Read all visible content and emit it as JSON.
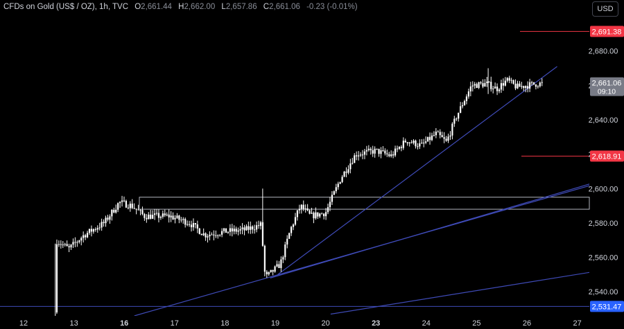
{
  "header": {
    "symbol": "CFDs on Gold (US$ / OZ), 1h, TVC",
    "open_label": "O",
    "open": "2,661.44",
    "high_label": "H",
    "high": "2,662.00",
    "low_label": "L",
    "low": "2,657.86",
    "close_label": "C",
    "close": "2,661.06",
    "change": "-0.23 (-0.01%)"
  },
  "currency_button": "USD",
  "colors": {
    "background": "#000000",
    "candle": "#ffffff",
    "trendline": "#3f4bb8",
    "marker_red": "#f23645",
    "axis_text": "#d1d4dc",
    "current_price_tag": "#787b86"
  },
  "chart_data": {
    "type": "candlestick",
    "title": "CFDs on Gold (US$ / OZ), 1h, TVC",
    "ylim": [
      2526,
      2700
    ],
    "y_ticks": [
      2540,
      2560,
      2580,
      2600,
      2620,
      2640,
      2660,
      2680
    ],
    "y_tick_labels": [
      "2,540.00",
      "2,560.00",
      "2,580.00",
      "2,600.00",
      "2,620.00",
      "2,640.00",
      "2,660.00",
      "2,680.00"
    ],
    "x_ticks": [
      {
        "label": "12",
        "pos": 0.0
      },
      {
        "label": "13",
        "pos": 1.0
      },
      {
        "label": "16",
        "pos": 2.0
      },
      {
        "label": "17",
        "pos": 3.0
      },
      {
        "label": "18",
        "pos": 4.0
      },
      {
        "label": "19",
        "pos": 5.0
      },
      {
        "label": "20",
        "pos": 6.0
      },
      {
        "label": "23",
        "pos": 7.0
      },
      {
        "label": "24",
        "pos": 8.0
      },
      {
        "label": "25",
        "pos": 9.0
      },
      {
        "label": "26",
        "pos": 10.0
      },
      {
        "label": "27",
        "pos": 11.0
      }
    ],
    "x_range": [
      -0.2,
      11.2
    ],
    "path": [
      [
        0.62,
        2528
      ],
      [
        0.64,
        2570
      ],
      [
        0.9,
        2565
      ],
      [
        1.2,
        2573
      ],
      [
        1.6,
        2580
      ],
      [
        1.9,
        2592
      ],
      [
        2.15,
        2590
      ],
      [
        2.4,
        2584
      ],
      [
        2.9,
        2584
      ],
      [
        3.3,
        2580
      ],
      [
        3.6,
        2573
      ],
      [
        4.0,
        2575
      ],
      [
        4.4,
        2576
      ],
      [
        4.72,
        2579
      ],
      [
        4.8,
        2548
      ],
      [
        5.1,
        2556
      ],
      [
        5.3,
        2576
      ],
      [
        5.5,
        2590
      ],
      [
        5.7,
        2584
      ],
      [
        6.0,
        2586
      ],
      [
        6.3,
        2606
      ],
      [
        6.6,
        2620
      ],
      [
        7.0,
        2622
      ],
      [
        7.3,
        2619
      ],
      [
        7.6,
        2628
      ],
      [
        7.9,
        2625
      ],
      [
        8.2,
        2632
      ],
      [
        8.4,
        2627
      ],
      [
        8.6,
        2642
      ],
      [
        8.9,
        2660
      ],
      [
        9.2,
        2661
      ],
      [
        9.4,
        2658
      ],
      [
        9.6,
        2663
      ],
      [
        9.8,
        2659
      ],
      [
        10.2,
        2661
      ],
      [
        10.32,
        2661
      ]
    ],
    "current_price": "2,661.06",
    "current_countdown": "09:10",
    "price_markers": [
      {
        "value": 2691.38,
        "label": "2,691.38",
        "color": "#f23645"
      },
      {
        "value": 2618.91,
        "label": "2,618.91",
        "color": "#f23645"
      },
      {
        "value": 2531.47,
        "label": "2,531.47",
        "color": "#2962ff"
      }
    ],
    "resistance_zone": {
      "x_start": 2.3,
      "y_low": 2588,
      "y_high": 2595
    },
    "trendlines": [
      {
        "from": [
          2.2,
          2526
        ],
        "to": [
          11.4,
          2603
        ]
      },
      {
        "from": [
          4.9,
          2548
        ],
        "to": [
          11.4,
          2604
        ]
      },
      {
        "from": [
          6.1,
          2527
        ],
        "to": [
          11.4,
          2552
        ]
      },
      {
        "from": [
          5.05,
          2550
        ],
        "to": [
          10.6,
          2671
        ]
      }
    ],
    "grid": false
  }
}
